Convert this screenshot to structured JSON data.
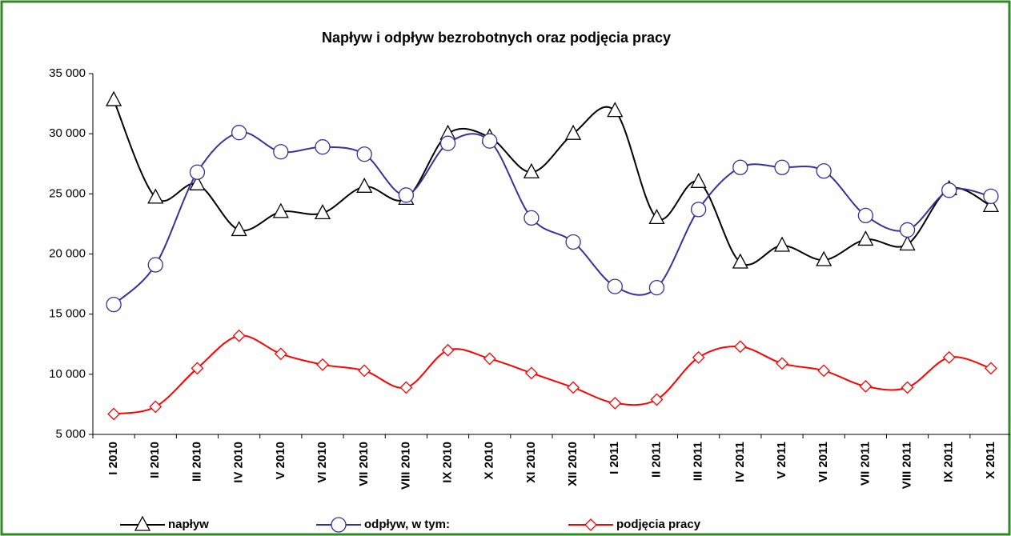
{
  "chart_data": {
    "type": "line",
    "title": "Napływ i odpływ bezrobotnych oraz podjęcia pracy",
    "categories": [
      "I 2010",
      "II 2010",
      "III 2010",
      "IV 2010",
      "V 2010",
      "VI 2010",
      "VII 2010",
      "VIII 2010",
      "IX 2010",
      "X 2010",
      "XI 2010",
      "XII 2010",
      "I 2011",
      "II 2011",
      "III 2011",
      "IV 2011",
      "V 2011",
      "VI 2011",
      "VII 2011",
      "VIII 2011",
      "IX 2011",
      "X 2011"
    ],
    "series": [
      {
        "name": "napływ",
        "color": "#000000",
        "marker": "triangle",
        "values": [
          32800,
          24700,
          25800,
          22000,
          23500,
          23400,
          25600,
          24600,
          30000,
          29700,
          26800,
          30000,
          31900,
          23000,
          26000,
          19300,
          20700,
          19500,
          21200,
          20800,
          25400,
          24000
        ]
      },
      {
        "name": "odpływ, w tym:",
        "color": "#333399",
        "marker": "circle",
        "values": [
          15800,
          19100,
          26800,
          30100,
          28500,
          28900,
          28300,
          24900,
          29200,
          29400,
          23000,
          21000,
          17300,
          17200,
          23700,
          27200,
          27200,
          26900,
          23200,
          22000,
          25300,
          24800
        ]
      },
      {
        "name": "podjęcia pracy",
        "color": "#ff0000",
        "marker": "diamond",
        "values": [
          6700,
          7300,
          10500,
          13200,
          11700,
          10800,
          10300,
          8900,
          12000,
          11300,
          10100,
          8900,
          7600,
          7900,
          11400,
          12300,
          10900,
          10300,
          9000,
          8900,
          11400,
          10500
        ]
      }
    ],
    "ylim": [
      5000,
      35000
    ],
    "yticks": [
      {
        "value": 5000,
        "label": "5 000"
      },
      {
        "value": 10000,
        "label": "10 000"
      },
      {
        "value": 15000,
        "label": "15 000"
      },
      {
        "value": 20000,
        "label": "20 000"
      },
      {
        "value": 25000,
        "label": "25 000"
      },
      {
        "value": 30000,
        "label": "30 000"
      },
      {
        "value": 35000,
        "label": "35 000"
      }
    ],
    "smooth": true,
    "legend": "bottom"
  }
}
